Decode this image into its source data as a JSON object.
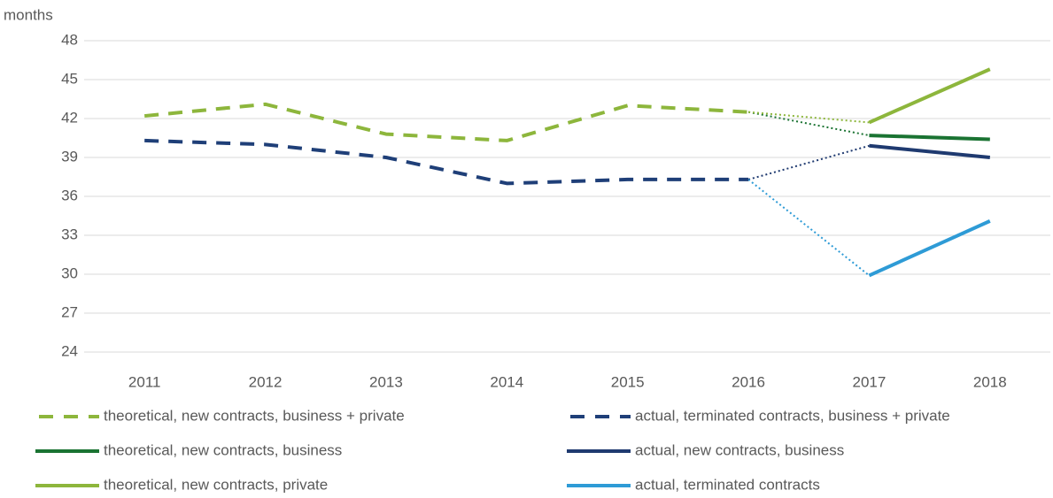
{
  "chart_data": {
    "type": "line",
    "y_label": "months",
    "categories": [
      "2011",
      "2012",
      "2013",
      "2014",
      "2015",
      "2016",
      "2017",
      "2018"
    ],
    "ylim": [
      24,
      48
    ],
    "yticks": [
      24,
      27,
      30,
      33,
      36,
      39,
      42,
      45,
      48
    ],
    "grid": true,
    "series": [
      {
        "name": "theoretical, new contracts, business + private",
        "color": "#8db63c",
        "style": "dashed",
        "values": [
          42.2,
          43.1,
          40.8,
          40.3,
          43.0,
          42.5,
          null,
          null
        ]
      },
      {
        "name": "actual, terminated contracts, business + private",
        "color": "#1f3f78",
        "style": "dashed",
        "values": [
          40.3,
          40.0,
          39.0,
          37.0,
          37.3,
          37.3,
          null,
          null
        ]
      },
      {
        "name": "theoretical, new contracts, business",
        "color": "#1a7332",
        "style": "solid",
        "bridge_from": 0,
        "values": [
          null,
          null,
          null,
          null,
          null,
          null,
          40.7,
          40.4
        ]
      },
      {
        "name": "actual, new contracts, business",
        "color": "#1f3a70",
        "style": "solid",
        "bridge_from": 1,
        "values": [
          null,
          null,
          null,
          null,
          null,
          null,
          39.9,
          39.0
        ]
      },
      {
        "name": "theoretical, new contracts, private",
        "color": "#8db63c",
        "style": "solid",
        "bridge_from": 0,
        "values": [
          null,
          null,
          null,
          null,
          null,
          null,
          41.7,
          45.8
        ]
      },
      {
        "name": "actual, terminated contracts",
        "color": "#2e9bd6",
        "style": "solid",
        "bridge_from": 1,
        "values": [
          null,
          null,
          null,
          null,
          null,
          null,
          29.9,
          34.1
        ]
      }
    ]
  }
}
